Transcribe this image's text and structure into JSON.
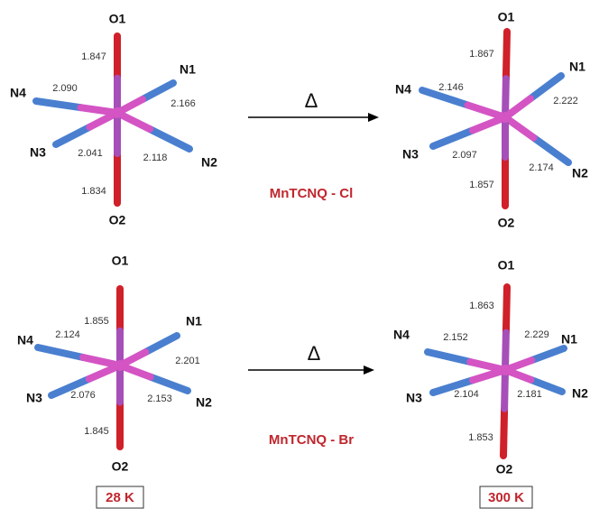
{
  "panels": [
    {
      "atoms": {
        "O1": "O1",
        "N1": "N1",
        "N2": "N2",
        "N3": "N3",
        "N4": "N4",
        "O2": "O2"
      },
      "bonds": {
        "O1": "1.847",
        "N1": "2.166",
        "N2": "2.118",
        "N3": "2.041",
        "N4": "2.090",
        "O2": "1.834"
      }
    },
    {
      "atoms": {
        "O1": "O1",
        "N1": "N1",
        "N2": "N2",
        "N3": "N3",
        "N4": "N4",
        "O2": "O2"
      },
      "bonds": {
        "O1": "1.867",
        "N1": "2.222",
        "N2": "2.174",
        "N3": "2.097",
        "N4": "2.146",
        "O2": "1.857"
      }
    },
    {
      "atoms": {
        "O1": "O1",
        "N1": "N1",
        "N2": "N2",
        "N3": "N3",
        "N4": "N4",
        "O2": "O2"
      },
      "bonds": {
        "O1": "1.855",
        "N1": "2.201",
        "N2": "2.153",
        "N3": "2.076",
        "N4": "2.124",
        "O2": "1.845"
      }
    },
    {
      "atoms": {
        "O1": "O1",
        "N1": "N1",
        "N2": "N2",
        "N3": "N3",
        "N4": "N4",
        "O2": "O2"
      },
      "bonds": {
        "O1": "1.863",
        "N1": "2.229",
        "N2": "2.181",
        "N3": "2.104",
        "N4": "2.152",
        "O2": "1.853"
      }
    }
  ],
  "arrows": [
    {
      "symbol": "Δ",
      "compound": "MnTCNQ - Cl"
    },
    {
      "symbol": "Δ",
      "compound": "MnTCNQ - Br"
    }
  ],
  "temperatures": [
    "28 K",
    "300 K"
  ]
}
